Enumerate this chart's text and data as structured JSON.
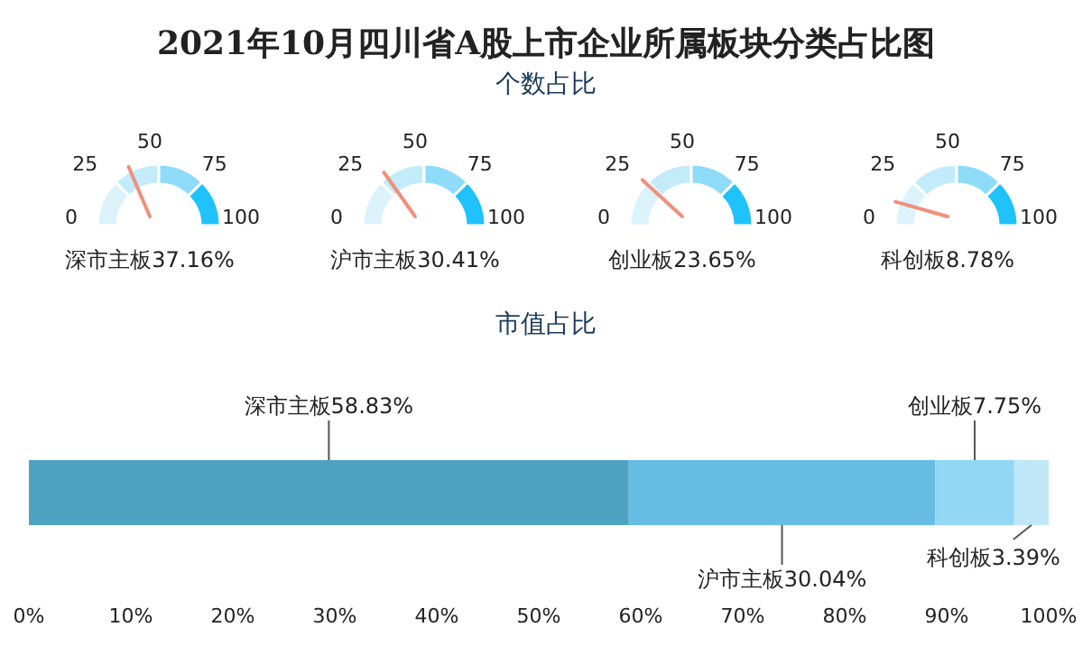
{
  "chart_data": [
    {
      "type": "other",
      "title": "2021年10月四川省A股上市企业所属板块分类占比图",
      "subtitle": "个数占比",
      "categories": [
        "深市主板"
      ],
      "values": [
        37.16
      ],
      "value_labels": [
        "37.16%"
      ],
      "annotations": [
        "0",
        "25",
        "50",
        "75",
        "100"
      ],
      "color": "#f0907c"
    },
    {
      "type": "other",
      "categories": [
        "沪市主板"
      ],
      "values": [
        30.41
      ],
      "value_labels": [
        "30.41%"
      ],
      "annotations": [
        "0",
        "25",
        "50",
        "75",
        "100"
      ],
      "color": "#f0907c"
    },
    {
      "type": "other",
      "categories": [
        "创业板"
      ],
      "values": [
        23.65
      ],
      "value_labels": [
        "23.65%"
      ],
      "annotations": [
        "0",
        "25",
        "50",
        "75",
        "100"
      ],
      "color": "#f0907c"
    },
    {
      "type": "other",
      "categories": [
        "科创板"
      ],
      "values": [
        8.78
      ],
      "value_labels": [
        "8.78%"
      ],
      "annotations": [
        "0",
        "25",
        "50",
        "75",
        "100"
      ],
      "color": "#f0907c"
    },
    {
      "type": "bar",
      "title": "市值占比",
      "orientation": "horizontal",
      "stacked": true,
      "categories": [
        null
      ],
      "xlim": [
        0,
        100
      ],
      "xticks": [
        {
          "value": 0,
          "label": "0%"
        },
        {
          "value": 10,
          "label": "10%"
        },
        {
          "value": 20,
          "label": "20%"
        },
        {
          "value": 30,
          "label": "30%"
        },
        {
          "value": 40,
          "label": "40%"
        },
        {
          "value": 50,
          "label": "50%"
        },
        {
          "value": 60,
          "label": "60%"
        },
        {
          "value": 70,
          "label": "70%"
        },
        {
          "value": 80,
          "label": "80%"
        },
        {
          "value": 90,
          "label": "90%"
        },
        {
          "value": 100,
          "label": "100%"
        }
      ],
      "series": [
        {
          "name": "深市主板",
          "color": "#4fa3c2",
          "values": [
            58.83
          ],
          "value_labels": [
            "58.83%"
          ]
        },
        {
          "name": "沪市主板",
          "color": "#66bde4",
          "values": [
            30.04
          ],
          "value_labels": [
            "30.04%"
          ]
        },
        {
          "name": "创业板",
          "color": "#92d7f5",
          "values": [
            7.75
          ],
          "value_labels": [
            "7.75%"
          ]
        },
        {
          "name": "科创板",
          "color": "#bfe7f8",
          "values": [
            3.39
          ],
          "value_labels": [
            "3.39%"
          ]
        }
      ]
    }
  ]
}
